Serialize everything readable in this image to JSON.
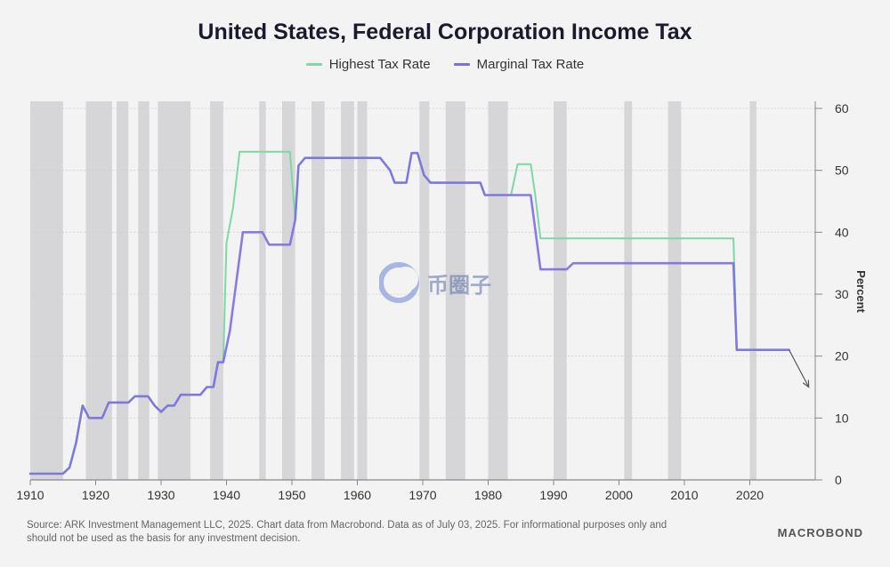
{
  "chart_data": {
    "type": "line",
    "title": "United States, Federal Corporation Income Tax",
    "ylabel": "Percent",
    "xlabel": "",
    "xlim": [
      1910,
      2030
    ],
    "ylim": [
      0,
      60
    ],
    "x_ticks": [
      "1910",
      "1920",
      "1930",
      "1940",
      "1950",
      "1960",
      "1970",
      "1980",
      "1990",
      "2000",
      "2010",
      "2020"
    ],
    "y_ticks": [
      "0",
      "10",
      "20",
      "30",
      "40",
      "50",
      "60"
    ],
    "grid": "horizontal",
    "legend_position": "top-center",
    "recession_bands": [
      [
        1910.0,
        1915.0
      ],
      [
        1918.5,
        1922.5
      ],
      [
        1923.2,
        1925.0
      ],
      [
        1926.5,
        1928.2
      ],
      [
        1929.5,
        1934.5
      ],
      [
        1937.5,
        1939.5
      ],
      [
        1945.0,
        1946.0
      ],
      [
        1948.5,
        1950.5
      ],
      [
        1953.0,
        1955.0
      ],
      [
        1957.5,
        1959.5
      ],
      [
        1960.0,
        1961.5
      ],
      [
        1969.5,
        1971.0
      ],
      [
        1973.5,
        1976.5
      ],
      [
        1980.0,
        1983.0
      ],
      [
        1990.0,
        1992.0
      ],
      [
        2000.8,
        2002.0
      ],
      [
        2007.5,
        2009.5
      ],
      [
        2020.0,
        2021.0
      ]
    ],
    "series": [
      {
        "name": "Highest Tax Rate",
        "color": "#7dd8a5",
        "points": [
          [
            1910,
            1
          ],
          [
            1915,
            1
          ],
          [
            1916,
            2
          ],
          [
            1917,
            6
          ],
          [
            1918,
            12
          ],
          [
            1919,
            10
          ],
          [
            1921,
            10
          ],
          [
            1922,
            12.5
          ],
          [
            1925,
            12.5
          ],
          [
            1926,
            13.5
          ],
          [
            1928,
            13.5
          ],
          [
            1929,
            12
          ],
          [
            1930,
            11
          ],
          [
            1931,
            12
          ],
          [
            1932,
            12
          ],
          [
            1933,
            13.75
          ],
          [
            1936,
            13.75
          ],
          [
            1937,
            15
          ],
          [
            1938,
            15
          ],
          [
            1938.7,
            19
          ],
          [
            1939.5,
            19
          ],
          [
            1940,
            38.3
          ],
          [
            1941,
            44
          ],
          [
            1942,
            53
          ],
          [
            1949.7,
            53
          ],
          [
            1950.5,
            42
          ],
          [
            1951,
            50.75
          ],
          [
            1952,
            52
          ],
          [
            1963.5,
            52
          ],
          [
            1965,
            50
          ],
          [
            1965.7,
            48
          ],
          [
            1967.5,
            48
          ],
          [
            1968.3,
            52.8
          ],
          [
            1969.2,
            52.8
          ],
          [
            1970.2,
            49.2
          ],
          [
            1971.2,
            48
          ],
          [
            1978.8,
            48
          ],
          [
            1979.5,
            46
          ],
          [
            1983.5,
            46
          ],
          [
            1984.5,
            51
          ],
          [
            1986.5,
            51
          ],
          [
            1987.2,
            46
          ],
          [
            1988,
            39
          ],
          [
            2017.5,
            39
          ],
          [
            2018,
            21
          ],
          [
            2026,
            21
          ]
        ]
      },
      {
        "name": "Marginal Tax Rate",
        "color": "#7c6fe0",
        "points": [
          [
            1910,
            1
          ],
          [
            1915,
            1
          ],
          [
            1916,
            2
          ],
          [
            1917,
            6
          ],
          [
            1918,
            12
          ],
          [
            1919,
            10
          ],
          [
            1921,
            10
          ],
          [
            1922,
            12.5
          ],
          [
            1925,
            12.5
          ],
          [
            1926,
            13.5
          ],
          [
            1928,
            13.5
          ],
          [
            1929,
            12
          ],
          [
            1930,
            11
          ],
          [
            1931,
            12
          ],
          [
            1932,
            12
          ],
          [
            1933,
            13.75
          ],
          [
            1936,
            13.75
          ],
          [
            1937,
            15
          ],
          [
            1938,
            15
          ],
          [
            1938.7,
            19
          ],
          [
            1939.5,
            19
          ],
          [
            1940.5,
            24
          ],
          [
            1942.5,
            40
          ],
          [
            1945.5,
            40
          ],
          [
            1946.5,
            38
          ],
          [
            1949.7,
            38
          ],
          [
            1950.5,
            42
          ],
          [
            1951,
            50.75
          ],
          [
            1952,
            52
          ],
          [
            1963.5,
            52
          ],
          [
            1965,
            50
          ],
          [
            1965.7,
            48
          ],
          [
            1967.5,
            48
          ],
          [
            1968.3,
            52.8
          ],
          [
            1969.2,
            52.8
          ],
          [
            1970.2,
            49.2
          ],
          [
            1971.2,
            48
          ],
          [
            1978.8,
            48
          ],
          [
            1979.5,
            46
          ],
          [
            1986.5,
            46
          ],
          [
            1988,
            34
          ],
          [
            1992,
            34
          ],
          [
            1993,
            35
          ],
          [
            2017.5,
            35
          ],
          [
            2018,
            21
          ],
          [
            2026,
            21
          ]
        ]
      }
    ],
    "projection_arrow": {
      "from": [
        2026,
        21
      ],
      "to": [
        2029,
        15
      ]
    }
  },
  "legend": {
    "items": [
      {
        "label": "Highest Tax Rate",
        "color": "#7dd8a5"
      },
      {
        "label": "Marginal Tax Rate",
        "color": "#7c6fe0"
      }
    ]
  },
  "footer": {
    "source_line1": "Source: ARK Investment Management LLC, 2025. Chart data from Macrobond. Data as of July 03, 2025. For informational purposes only and",
    "source_line2": "should not be used as the basis for any investment decision.",
    "logo": "MACROBOND"
  },
  "watermark": {
    "text": "币圈子",
    "icon": "crescent-logo-icon"
  },
  "colors": {
    "recession_band": "#d6d6d9",
    "grid": "#cfcfcf",
    "axis_text": "#333333"
  }
}
